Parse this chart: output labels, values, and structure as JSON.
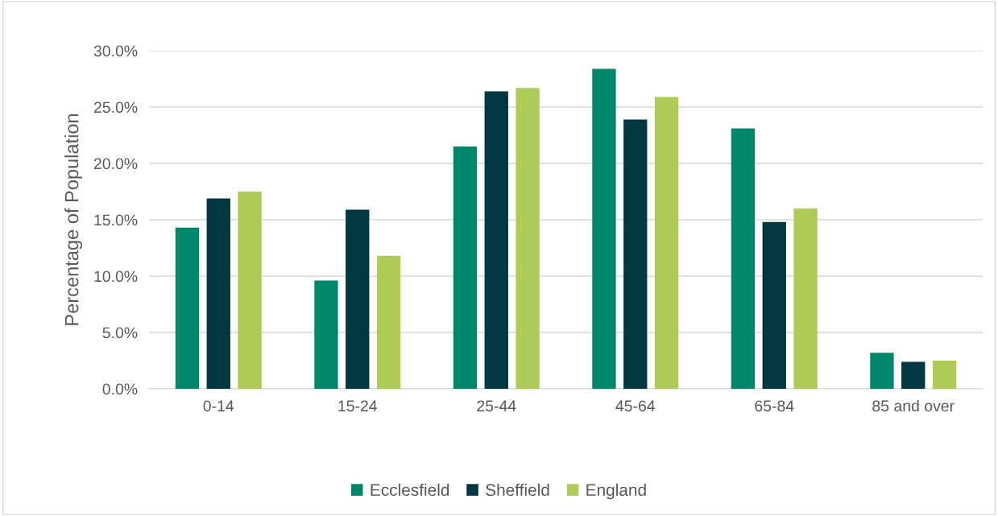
{
  "chart_data": {
    "type": "bar",
    "ylabel": "Percentage of Population",
    "categories": [
      "0-14",
      "15-24",
      "25-44",
      "45-64",
      "65-84",
      "85 and over"
    ],
    "series": [
      {
        "name": "Ecclesfield",
        "color": "#00876a",
        "values": [
          14.3,
          9.6,
          21.5,
          28.4,
          23.1,
          3.2
        ]
      },
      {
        "name": "Sheffield",
        "color": "#003741",
        "values": [
          16.9,
          15.9,
          26.4,
          23.9,
          14.8,
          2.4
        ]
      },
      {
        "name": "England",
        "color": "#afcb57",
        "values": [
          17.5,
          11.8,
          26.7,
          25.9,
          16.0,
          2.5
        ]
      }
    ],
    "ylim": [
      0,
      30
    ],
    "yticks": [
      {
        "value": 0,
        "label": "0.0%"
      },
      {
        "value": 5,
        "label": "5.0%"
      },
      {
        "value": 10,
        "label": "10.0%"
      },
      {
        "value": 15,
        "label": "15.0%"
      },
      {
        "value": 20,
        "label": "20.0%"
      },
      {
        "value": 25,
        "label": "25.0%"
      },
      {
        "value": 30,
        "label": "30.0%"
      }
    ],
    "grid": "y",
    "legend": "bottom"
  }
}
